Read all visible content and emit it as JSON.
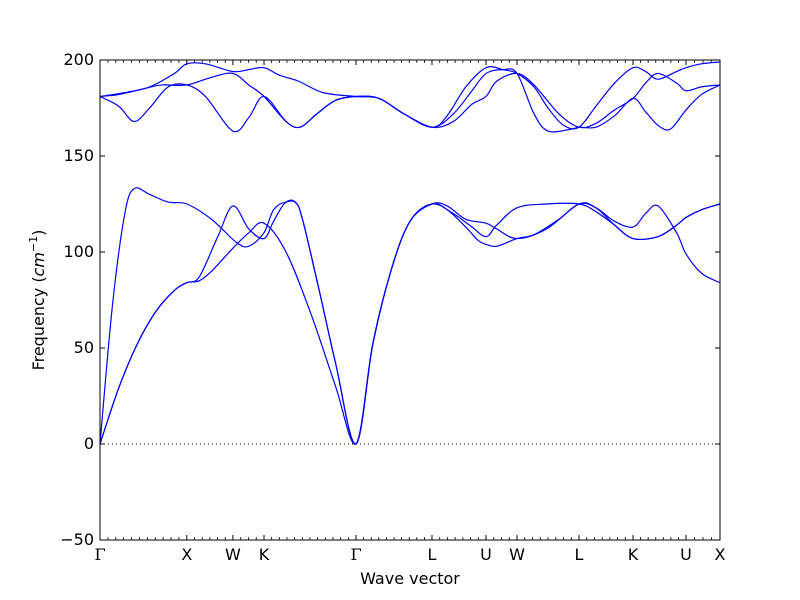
{
  "chart_data": {
    "type": "line",
    "xlabel": "Wave vector",
    "ylabel_main": "Frequency (",
    "ylabel_unit": "cm",
    "ylabel_exp": "−1",
    "ylabel_close": ")",
    "ylim": [
      -50,
      200
    ],
    "yticks": [
      -50,
      0,
      50,
      100,
      150,
      200
    ],
    "xlim": [
      0,
      1
    ],
    "x_ticks": [
      {
        "label": "Γ",
        "x": 0.0
      },
      {
        "label": "X",
        "x": 0.14
      },
      {
        "label": "W",
        "x": 0.2144
      },
      {
        "label": "K",
        "x": 0.2645
      },
      {
        "label": "Γ",
        "x": 0.4129
      },
      {
        "label": "L",
        "x": 0.5355
      },
      {
        "label": "U",
        "x": 0.6226
      },
      {
        "label": "W",
        "x": 0.6726
      },
      {
        "label": "L",
        "x": 0.7726
      },
      {
        "label": "K",
        "x": 0.8597
      },
      {
        "label": "U",
        "x": 0.9452
      },
      {
        "label": "X",
        "x": 1.0
      }
    ],
    "zero_line": {
      "y": 0,
      "style": "dotted"
    },
    "line_color": "#0000ff",
    "series": [
      {
        "points": [
          [
            0,
            0
          ],
          [
            0.03,
            29
          ],
          [
            0.06,
            52
          ],
          [
            0.09,
            69
          ],
          [
            0.12,
            80
          ],
          [
            0.14,
            84
          ],
          [
            0.16,
            85
          ],
          [
            0.18,
            90
          ],
          [
            0.2144,
            102
          ],
          [
            0.24,
            110
          ],
          [
            0.2645,
            115
          ],
          [
            0.3,
            100
          ],
          [
            0.34,
            68
          ],
          [
            0.38,
            30
          ],
          [
            0.4129,
            0
          ],
          [
            0.44,
            52
          ],
          [
            0.47,
            91
          ],
          [
            0.5,
            116
          ],
          [
            0.5355,
            125
          ],
          [
            0.57,
            120
          ],
          [
            0.6,
            113
          ],
          [
            0.6226,
            108
          ],
          [
            0.64,
            114
          ],
          [
            0.6726,
            123
          ],
          [
            0.72,
            125
          ],
          [
            0.7726,
            125
          ],
          [
            0.8,
            121
          ],
          [
            0.83,
            114
          ],
          [
            0.8597,
            107
          ],
          [
            0.9,
            108
          ],
          [
            0.93,
            114
          ],
          [
            0.9452,
            118
          ],
          [
            0.97,
            122
          ],
          [
            1.0,
            125
          ]
        ]
      },
      {
        "points": [
          [
            0,
            0
          ],
          [
            0.03,
            29
          ],
          [
            0.06,
            52
          ],
          [
            0.09,
            69
          ],
          [
            0.12,
            80
          ],
          [
            0.14,
            84
          ],
          [
            0.16,
            87
          ],
          [
            0.19,
            108
          ],
          [
            0.2144,
            124
          ],
          [
            0.24,
            112
          ],
          [
            0.2645,
            107
          ],
          [
            0.28,
            116
          ],
          [
            0.3,
            126
          ],
          [
            0.32,
            124
          ],
          [
            0.35,
            85
          ],
          [
            0.38,
            42
          ],
          [
            0.4129,
            0
          ],
          [
            0.44,
            52
          ],
          [
            0.47,
            91
          ],
          [
            0.5,
            116
          ],
          [
            0.5355,
            125
          ],
          [
            0.56,
            124
          ],
          [
            0.59,
            117
          ],
          [
            0.6226,
            115
          ],
          [
            0.64,
            112
          ],
          [
            0.6726,
            107
          ],
          [
            0.72,
            112
          ],
          [
            0.7726,
            125
          ],
          [
            0.8,
            123
          ],
          [
            0.83,
            116
          ],
          [
            0.8597,
            113
          ],
          [
            0.88,
            120
          ],
          [
            0.9,
            124
          ],
          [
            0.93,
            110
          ],
          [
            0.9452,
            99
          ],
          [
            0.97,
            89
          ],
          [
            1.0,
            84
          ]
        ]
      },
      {
        "points": [
          [
            0,
            0
          ],
          [
            0.02,
            72
          ],
          [
            0.04,
            120
          ],
          [
            0.055,
            133
          ],
          [
            0.08,
            130
          ],
          [
            0.11,
            126
          ],
          [
            0.14,
            125
          ],
          [
            0.18,
            117
          ],
          [
            0.22,
            105
          ],
          [
            0.24,
            103
          ],
          [
            0.2645,
            110
          ],
          [
            0.28,
            122
          ],
          [
            0.3,
            126
          ],
          [
            0.32,
            124
          ],
          [
            0.35,
            85
          ],
          [
            0.38,
            42
          ],
          [
            0.4129,
            0
          ],
          [
            0.44,
            52
          ],
          [
            0.47,
            91
          ],
          [
            0.5,
            116
          ],
          [
            0.5355,
            125
          ],
          [
            0.56,
            122
          ],
          [
            0.59,
            113
          ],
          [
            0.61,
            106
          ],
          [
            0.6226,
            104
          ],
          [
            0.64,
            103
          ],
          [
            0.6726,
            107
          ],
          [
            0.7,
            109
          ],
          [
            0.74,
            117
          ],
          [
            0.7726,
            125
          ],
          [
            0.8,
            123
          ],
          [
            0.83,
            114
          ],
          [
            0.8597,
            107
          ],
          [
            0.9,
            108
          ],
          [
            0.93,
            114
          ],
          [
            0.9452,
            118
          ],
          [
            0.97,
            122
          ],
          [
            1.0,
            125
          ]
        ]
      },
      {
        "points": [
          [
            0,
            181
          ],
          [
            0.03,
            182
          ],
          [
            0.07,
            185
          ],
          [
            0.1,
            187
          ],
          [
            0.14,
            187
          ],
          [
            0.18,
            191
          ],
          [
            0.2144,
            193
          ],
          [
            0.24,
            187
          ],
          [
            0.2645,
            181
          ],
          [
            0.3,
            168
          ],
          [
            0.3226,
            165
          ],
          [
            0.35,
            172
          ],
          [
            0.38,
            179
          ],
          [
            0.4129,
            181
          ],
          [
            0.45,
            180
          ],
          [
            0.49,
            172
          ],
          [
            0.5355,
            165
          ],
          [
            0.57,
            168
          ],
          [
            0.6,
            177
          ],
          [
            0.6226,
            181
          ],
          [
            0.64,
            189
          ],
          [
            0.6726,
            193
          ],
          [
            0.7,
            187
          ],
          [
            0.74,
            172
          ],
          [
            0.7726,
            165
          ],
          [
            0.8,
            167
          ],
          [
            0.83,
            174
          ],
          [
            0.8597,
            180
          ],
          [
            0.88,
            188
          ],
          [
            0.9,
            193
          ],
          [
            0.93,
            188
          ],
          [
            0.9452,
            184
          ],
          [
            0.97,
            186
          ],
          [
            1.0,
            187
          ]
        ]
      },
      {
        "points": [
          [
            0,
            181
          ],
          [
            0.03,
            176
          ],
          [
            0.055,
            168
          ],
          [
            0.08,
            175
          ],
          [
            0.11,
            186
          ],
          [
            0.14,
            187
          ],
          [
            0.17,
            181
          ],
          [
            0.2144,
            163
          ],
          [
            0.24,
            170
          ],
          [
            0.2645,
            181
          ],
          [
            0.3,
            168
          ],
          [
            0.3226,
            165
          ],
          [
            0.35,
            172
          ],
          [
            0.38,
            179
          ],
          [
            0.4129,
            181
          ],
          [
            0.45,
            180
          ],
          [
            0.49,
            172
          ],
          [
            0.5355,
            165
          ],
          [
            0.57,
            172
          ],
          [
            0.6,
            184
          ],
          [
            0.6226,
            193
          ],
          [
            0.65,
            195
          ],
          [
            0.6726,
            193
          ],
          [
            0.7,
            172
          ],
          [
            0.7226,
            163
          ],
          [
            0.76,
            164
          ],
          [
            0.7726,
            165
          ],
          [
            0.8,
            165
          ],
          [
            0.83,
            171
          ],
          [
            0.8597,
            180
          ],
          [
            0.88,
            173
          ],
          [
            0.9,
            166
          ],
          [
            0.92,
            164
          ],
          [
            0.9452,
            174
          ],
          [
            0.97,
            182
          ],
          [
            1.0,
            187
          ]
        ]
      },
      {
        "points": [
          [
            0,
            181
          ],
          [
            0.04,
            183
          ],
          [
            0.08,
            186
          ],
          [
            0.12,
            193
          ],
          [
            0.14,
            198
          ],
          [
            0.17,
            198
          ],
          [
            0.2144,
            194
          ],
          [
            0.24,
            195
          ],
          [
            0.2645,
            196
          ],
          [
            0.29,
            192
          ],
          [
            0.32,
            189
          ],
          [
            0.36,
            183
          ],
          [
            0.4129,
            181
          ],
          [
            0.45,
            180
          ],
          [
            0.49,
            172
          ],
          [
            0.5355,
            165
          ],
          [
            0.56,
            171
          ],
          [
            0.59,
            186
          ],
          [
            0.6226,
            196
          ],
          [
            0.65,
            195
          ],
          [
            0.6726,
            193
          ],
          [
            0.7,
            186
          ],
          [
            0.7226,
            175
          ],
          [
            0.7476,
            166
          ],
          [
            0.7726,
            165
          ],
          [
            0.8,
            176
          ],
          [
            0.83,
            188
          ],
          [
            0.8597,
            196
          ],
          [
            0.88,
            194
          ],
          [
            0.9,
            190
          ],
          [
            0.93,
            194
          ],
          [
            0.9452,
            196
          ],
          [
            0.97,
            198
          ],
          [
            1.0,
            199
          ]
        ]
      }
    ]
  }
}
